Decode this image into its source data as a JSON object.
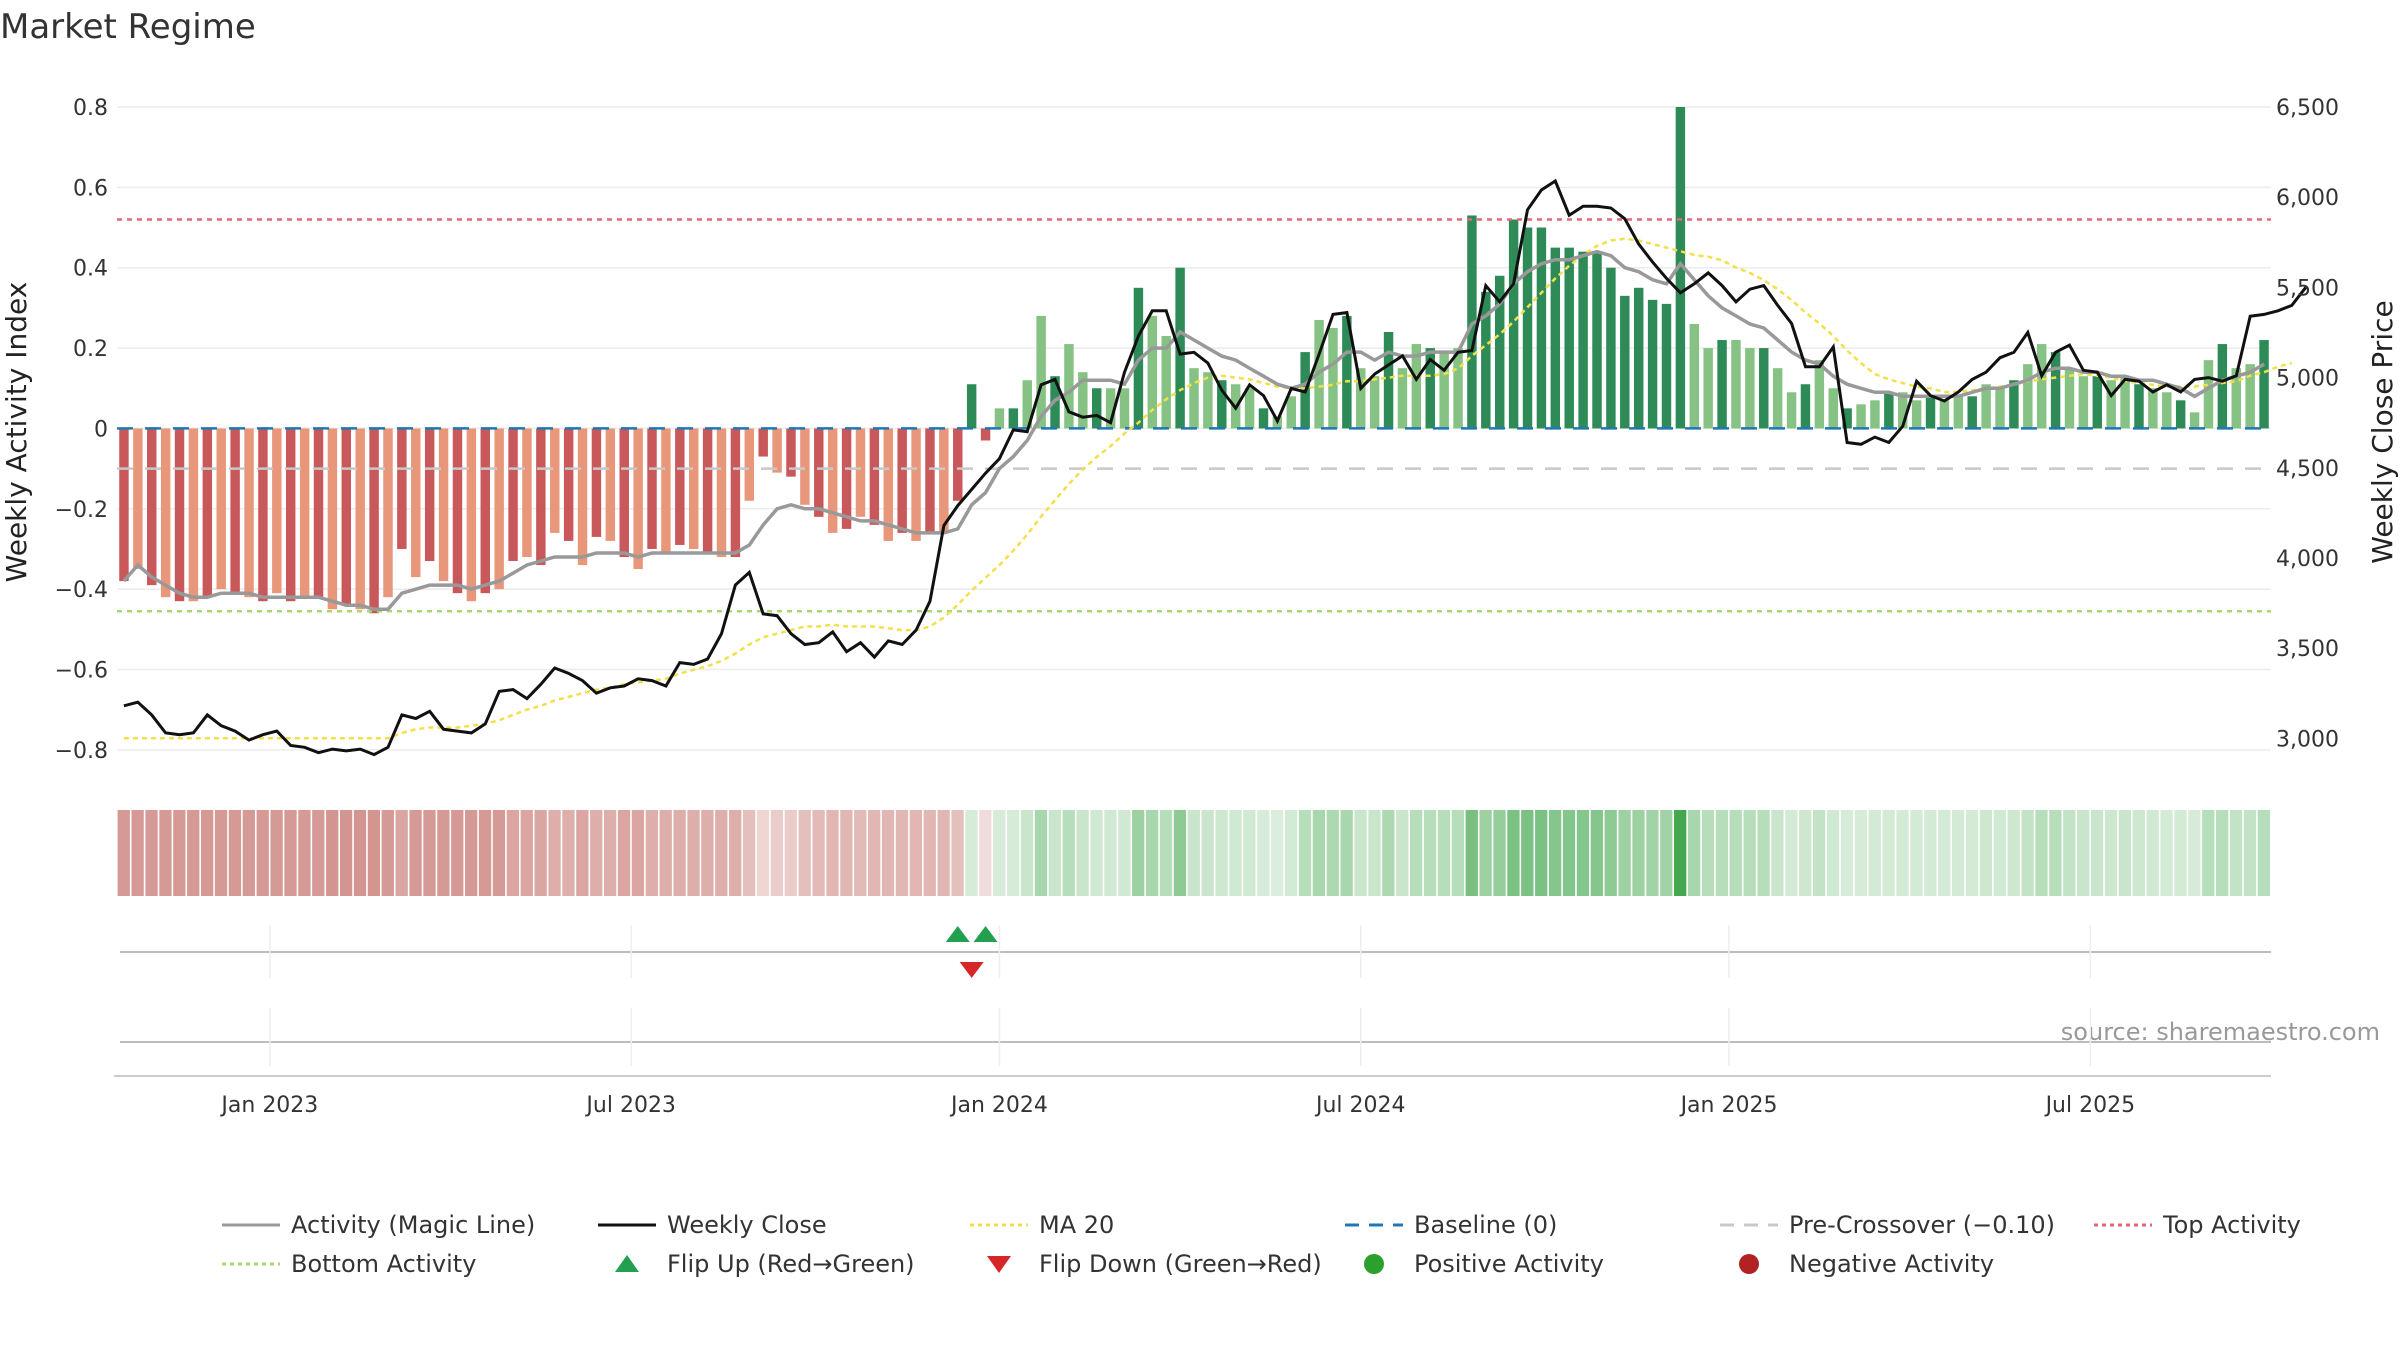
{
  "chart_data": {
    "type": "bar",
    "title": "Market Regime",
    "ylabel_left": "Weekly Activity Index",
    "ylabel_right": "Weekly Close Price",
    "y_left_range": [
      -0.87,
      0.8
    ],
    "y_right_range": [
      2780,
      6500
    ],
    "y_left_ticks": [
      {
        "value": 0.8,
        "label": "0.8"
      },
      {
        "value": 0.6,
        "label": "0.6"
      },
      {
        "value": 0.4,
        "label": "0.4"
      },
      {
        "value": 0.2,
        "label": "0.2"
      },
      {
        "value": 0,
        "label": "0"
      },
      {
        "value": -0.2,
        "label": "−0.2"
      },
      {
        "value": -0.4,
        "label": "−0.4"
      },
      {
        "value": -0.6,
        "label": "−0.6"
      },
      {
        "value": -0.8,
        "label": "−0.8"
      }
    ],
    "y_right_ticks": [
      {
        "value": 6500,
        "label": "6,500"
      },
      {
        "value": 6000,
        "label": "6,000"
      },
      {
        "value": 5500,
        "label": "5,500"
      },
      {
        "value": 5000,
        "label": "5,000"
      },
      {
        "value": 4500,
        "label": "4,500"
      },
      {
        "value": 4000,
        "label": "4,000"
      },
      {
        "value": 3500,
        "label": "3,500"
      },
      {
        "value": 3000,
        "label": "3,000"
      }
    ],
    "x_ticks": [
      {
        "label": "Jan 2023",
        "week": 10.5
      },
      {
        "label": "Jul 2023",
        "week": 36.5
      },
      {
        "label": "Jan 2024",
        "week": 63
      },
      {
        "label": "Jul 2024",
        "week": 89
      },
      {
        "label": "Jan 2025",
        "week": 115.5
      },
      {
        "label": "Jul 2025",
        "week": 141.5
      }
    ],
    "activity": [
      -0.38,
      -0.35,
      -0.39,
      -0.42,
      -0.43,
      -0.43,
      -0.42,
      -0.4,
      -0.41,
      -0.42,
      -0.43,
      -0.41,
      -0.43,
      -0.42,
      -0.42,
      -0.45,
      -0.44,
      -0.45,
      -0.46,
      -0.42,
      -0.3,
      -0.37,
      -0.33,
      -0.38,
      -0.41,
      -0.43,
      -0.41,
      -0.4,
      -0.33,
      -0.32,
      -0.34,
      -0.26,
      -0.28,
      -0.34,
      -0.27,
      -0.28,
      -0.32,
      -0.35,
      -0.3,
      -0.31,
      -0.29,
      -0.3,
      -0.31,
      -0.32,
      -0.32,
      -0.18,
      -0.07,
      -0.11,
      -0.12,
      -0.19,
      -0.22,
      -0.26,
      -0.25,
      -0.22,
      -0.24,
      -0.28,
      -0.26,
      -0.28,
      -0.26,
      -0.26,
      -0.18,
      0.11,
      -0.03,
      0.05,
      0.05,
      0.12,
      0.28,
      0.13,
      0.21,
      0.14,
      0.1,
      0.1,
      0.1,
      0.35,
      0.28,
      0.23,
      0.4,
      0.15,
      0.14,
      0.12,
      0.11,
      0.1,
      0.05,
      0.03,
      0.08,
      0.19,
      0.27,
      0.25,
      0.28,
      0.15,
      0.13,
      0.24,
      0.15,
      0.21,
      0.2,
      0.19,
      0.2,
      0.53,
      0.34,
      0.38,
      0.52,
      0.5,
      0.5,
      0.45,
      0.45,
      0.44,
      0.44,
      0.4,
      0.33,
      0.35,
      0.32,
      0.31,
      0.8,
      0.26,
      0.2,
      0.22,
      0.22,
      0.2,
      0.2,
      0.15,
      0.09,
      0.11,
      0.17,
      0.1,
      0.05,
      0.06,
      0.07,
      0.09,
      0.09,
      0.07,
      0.08,
      0.07,
      0.08,
      0.08,
      0.11,
      0.1,
      0.12,
      0.16,
      0.21,
      0.19,
      0.15,
      0.13,
      0.13,
      0.12,
      0.13,
      0.11,
      0.1,
      0.09,
      0.07,
      0.04,
      0.17,
      0.21,
      0.15,
      0.16,
      0.22
    ],
    "magic_line": [
      -0.38,
      -0.34,
      -0.37,
      -0.39,
      -0.41,
      -0.42,
      -0.42,
      -0.41,
      -0.41,
      -0.41,
      -0.42,
      -0.42,
      -0.42,
      -0.42,
      -0.42,
      -0.43,
      -0.44,
      -0.44,
      -0.45,
      -0.45,
      -0.41,
      -0.4,
      -0.39,
      -0.39,
      -0.39,
      -0.4,
      -0.39,
      -0.38,
      -0.36,
      -0.34,
      -0.33,
      -0.32,
      -0.32,
      -0.32,
      -0.31,
      -0.31,
      -0.31,
      -0.32,
      -0.31,
      -0.31,
      -0.31,
      -0.31,
      -0.31,
      -0.31,
      -0.31,
      -0.29,
      -0.24,
      -0.2,
      -0.19,
      -0.2,
      -0.2,
      -0.21,
      -0.22,
      -0.23,
      -0.23,
      -0.24,
      -0.25,
      -0.26,
      -0.26,
      -0.26,
      -0.25,
      -0.19,
      -0.16,
      -0.1,
      -0.07,
      -0.03,
      0.03,
      0.07,
      0.09,
      0.12,
      0.12,
      0.12,
      0.11,
      0.17,
      0.2,
      0.2,
      0.24,
      0.22,
      0.2,
      0.18,
      0.17,
      0.15,
      0.13,
      0.11,
      0.1,
      0.11,
      0.14,
      0.16,
      0.19,
      0.19,
      0.17,
      0.19,
      0.18,
      0.18,
      0.19,
      0.19,
      0.19,
      0.26,
      0.28,
      0.31,
      0.36,
      0.39,
      0.41,
      0.42,
      0.42,
      0.43,
      0.44,
      0.43,
      0.4,
      0.39,
      0.37,
      0.36,
      0.41,
      0.37,
      0.33,
      0.3,
      0.28,
      0.26,
      0.25,
      0.22,
      0.19,
      0.17,
      0.16,
      0.13,
      0.11,
      0.1,
      0.09,
      0.09,
      0.08,
      0.08,
      0.08,
      0.08,
      0.08,
      0.09,
      0.1,
      0.1,
      0.11,
      0.12,
      0.14,
      0.15,
      0.15,
      0.14,
      0.14,
      0.13,
      0.13,
      0.12,
      0.12,
      0.11,
      0.1,
      0.08,
      0.1,
      0.12,
      0.13,
      0.14,
      0.16
    ],
    "weekly_close": [
      3180,
      3200,
      3130,
      3030,
      3020,
      3030,
      3130,
      3070,
      3040,
      2990,
      3020,
      3040,
      2960,
      2950,
      2920,
      2940,
      2930,
      2940,
      2910,
      2950,
      3130,
      3110,
      3150,
      3050,
      3040,
      3030,
      3080,
      3260,
      3270,
      3220,
      3300,
      3390,
      3360,
      3320,
      3250,
      3280,
      3290,
      3330,
      3320,
      3290,
      3420,
      3410,
      3440,
      3580,
      3850,
      3920,
      3690,
      3680,
      3580,
      3520,
      3530,
      3590,
      3480,
      3530,
      3450,
      3540,
      3520,
      3600,
      3760,
      4180,
      4290,
      4380,
      4470,
      4550,
      4710,
      4700,
      4960,
      4990,
      4810,
      4780,
      4790,
      4750,
      5030,
      5230,
      5370,
      5370,
      5130,
      5140,
      5080,
      4930,
      4830,
      4960,
      4900,
      4760,
      4940,
      4920,
      5130,
      5350,
      5360,
      4940,
      5020,
      5070,
      5120,
      4990,
      5100,
      5040,
      5140,
      5150,
      5510,
      5420,
      5520,
      5930,
      6040,
      6090,
      5900,
      5950,
      5950,
      5940,
      5880,
      5740,
      5640,
      5550,
      5470,
      5520,
      5580,
      5510,
      5420,
      5490,
      5510,
      5400,
      5300,
      5060,
      5060,
      5170,
      4640,
      4630,
      4670,
      4640,
      4730,
      4980,
      4900,
      4870,
      4920,
      4990,
      5030,
      5110,
      5140,
      5250,
      5010,
      5140,
      5180,
      5040,
      5030,
      4900,
      4990,
      4980,
      4920,
      4960,
      4920,
      4990,
      5000,
      4980,
      5010,
      5340,
      5350,
      5370,
      5400,
      5500
    ],
    "ma20": [
      3000,
      3000,
      3000,
      3000,
      3000,
      3000,
      3000,
      3000,
      3000,
      3000,
      3000,
      3000,
      3000,
      3000,
      3000,
      3000,
      3000,
      3000,
      3000,
      3000,
      3030,
      3050,
      3060,
      3060,
      3060,
      3070,
      3080,
      3100,
      3130,
      3160,
      3180,
      3210,
      3230,
      3250,
      3270,
      3280,
      3300,
      3310,
      3320,
      3330,
      3360,
      3380,
      3400,
      3430,
      3470,
      3520,
      3560,
      3580,
      3600,
      3620,
      3620,
      3630,
      3620,
      3620,
      3620,
      3610,
      3600,
      3600,
      3620,
      3670,
      3740,
      3820,
      3890,
      3960,
      4040,
      4130,
      4230,
      4320,
      4410,
      4490,
      4560,
      4620,
      4690,
      4750,
      4820,
      4880,
      4930,
      4970,
      5000,
      5010,
      5000,
      4990,
      4970,
      4950,
      4940,
      4940,
      4950,
      4960,
      4980,
      4980,
      4990,
      5000,
      5010,
      5010,
      5010,
      5020,
      5050,
      5120,
      5180,
      5240,
      5310,
      5390,
      5470,
      5550,
      5620,
      5680,
      5730,
      5760,
      5770,
      5760,
      5740,
      5720,
      5700,
      5680,
      5670,
      5650,
      5610,
      5580,
      5540,
      5490,
      5430,
      5360,
      5300,
      5230,
      5150,
      5080,
      5020,
      4990,
      4970,
      4950,
      4940,
      4920,
      4920,
      4930,
      4940,
      4950,
      4960,
      4980,
      4990,
      5000,
      5010,
      5020,
      5010,
      5000,
      4980,
      4970,
      4960,
      4950,
      4950,
      4950,
      4960,
      4970,
      4980,
      5010,
      5030,
      5060,
      5080
    ],
    "heat_colors": [
      "#d69a96",
      "#d69a96",
      "#d69a96",
      "#d69a96",
      "#d69a96",
      "#d69a96",
      "#d69a96",
      "#d69a96",
      "#d69a96",
      "#d69a96",
      "#d69a96",
      "#d69a96",
      "#d69a96",
      "#d69a96",
      "#d69a96",
      "#d4948f",
      "#d4948f",
      "#d4948f",
      "#d4948f",
      "#d69a96",
      "#dba6a2",
      "#d69a96",
      "#d69a96",
      "#d69a96",
      "#d69a96",
      "#d69a96",
      "#d69a96",
      "#d69a96",
      "#dba6a2",
      "#dba6a2",
      "#dba6a2",
      "#deaeab",
      "#deaeab",
      "#dba6a2",
      "#deaeab",
      "#deaeab",
      "#dba6a2",
      "#dba6a2",
      "#deaeab",
      "#deaeab",
      "#deaeab",
      "#deaeab",
      "#deaeab",
      "#deaeab",
      "#deaeab",
      "#e4c0bd",
      "#efd5d3",
      "#eacdca",
      "#eacdca",
      "#e4c0bd",
      "#e2bab7",
      "#e2b6b3",
      "#e2b6b3",
      "#e2bab7",
      "#e2b6b3",
      "#e2b6b3",
      "#e2b6b3",
      "#e2b6b3",
      "#e2b6b3",
      "#e2b6b3",
      "#e4c0bd",
      "#d6ecd8",
      "#f0dcdb",
      "#d6ecd8",
      "#d6ecd8",
      "#c9e6cc",
      "#a9d7ad",
      "#c9e6cc",
      "#b7deba",
      "#c9e6cc",
      "#d0e9d2",
      "#d0e9d2",
      "#d0e9d2",
      "#9dd1a2",
      "#a9d7ad",
      "#b7deba",
      "#8ecb94",
      "#c9e6cc",
      "#c9e6cc",
      "#cde8cf",
      "#d0e9d2",
      "#d0e9d2",
      "#d6ecd8",
      "#dbeedd",
      "#d3ead5",
      "#b7deba",
      "#a9d7ad",
      "#add9b1",
      "#a9d7ad",
      "#c9e6cc",
      "#c9e6cc",
      "#add9b1",
      "#c9e6cc",
      "#b7deba",
      "#b7deba",
      "#b7deba",
      "#b7deba",
      "#78bf80",
      "#9dd1a2",
      "#95cd9b",
      "#7ac183",
      "#7ac183",
      "#7ac183",
      "#85c68c",
      "#85c68c",
      "#85c68c",
      "#85c68c",
      "#8ecb94",
      "#9dd1a2",
      "#9dd1a2",
      "#a1d3a6",
      "#a1d3a6",
      "#45a84f",
      "#a9d7ad",
      "#b7deba",
      "#b7deba",
      "#b7deba",
      "#b7deba",
      "#b7deba",
      "#c9e6cc",
      "#d3ead5",
      "#cde8cf",
      "#c2e3c5",
      "#d0e9d2",
      "#d6ecd8",
      "#d6ecd8",
      "#d3ead5",
      "#d3ead5",
      "#d3ead5",
      "#d3ead5",
      "#d3ead5",
      "#d3ead5",
      "#d3ead5",
      "#d3ead5",
      "#cde8cf",
      "#d0e9d2",
      "#cde8cf",
      "#c2e3c5",
      "#b7deba",
      "#b7deba",
      "#c2e3c5",
      "#c9e6cc",
      "#c9e6cc",
      "#cde8cf",
      "#c9e6cc",
      "#cde8cf",
      "#d0e9d2",
      "#d3ead5",
      "#d3ead5",
      "#d6ecd8",
      "#b7deba",
      "#b7deba",
      "#c2e3c5",
      "#c2e3c5",
      "#b7deba"
    ],
    "flip_up_weeks": [
      60,
      62
    ],
    "flip_down_weeks": [
      61
    ],
    "reference_lines": {
      "baseline": 0,
      "pre_crossover": -0.1,
      "top_activity": 0.52,
      "bottom_activity": -0.455
    },
    "colors": {
      "pos_dark": "#2e8b57",
      "pos_light": "#86c283",
      "neg_dark": "#c9585b",
      "neg_light": "#e8977a",
      "magic_line": "#999999",
      "weekly_close": "#111111",
      "ma20": "#f2e04a",
      "baseline": "#1f77b4",
      "pre_crossover": "#c8c8c8",
      "top_activity": "#e06878",
      "bottom_activity": "#a8d870",
      "flip_up": "#22a050",
      "flip_down": "#d62728",
      "positive_activity": "#2ca02c",
      "negative_activity": "#b22222"
    },
    "legend": [
      {
        "label": "Activity (Magic Line)",
        "kind": "line",
        "color": "#999999",
        "dash": ""
      },
      {
        "label": "Weekly Close",
        "kind": "line",
        "color": "#111111",
        "dash": ""
      },
      {
        "label": "MA 20",
        "kind": "line",
        "color": "#f2e04a",
        "dash": "4,4"
      },
      {
        "label": "Baseline (0)",
        "kind": "line",
        "color": "#1f77b4",
        "dash": "14,10"
      },
      {
        "label": "Pre-Crossover (−0.10)",
        "kind": "line",
        "color": "#c8c8c8",
        "dash": "14,10"
      },
      {
        "label": "Top Activity",
        "kind": "line",
        "color": "#e06878",
        "dash": "4,4"
      },
      {
        "label": "Bottom Activity",
        "kind": "line",
        "color": "#a8d870",
        "dash": "4,4"
      },
      {
        "label": "Flip Up (Red→Green)",
        "kind": "triangle-up",
        "color": "#22a050"
      },
      {
        "label": "Flip Down (Green→Red)",
        "kind": "triangle-down",
        "color": "#d62728"
      },
      {
        "label": "Positive Activity",
        "kind": "circle",
        "color": "#2ca02c"
      },
      {
        "label": "Negative Activity",
        "kind": "circle",
        "color": "#b22222"
      }
    ],
    "legend_position": "bottom",
    "grid": true
  },
  "source_text": "source: sharemaestro.com"
}
